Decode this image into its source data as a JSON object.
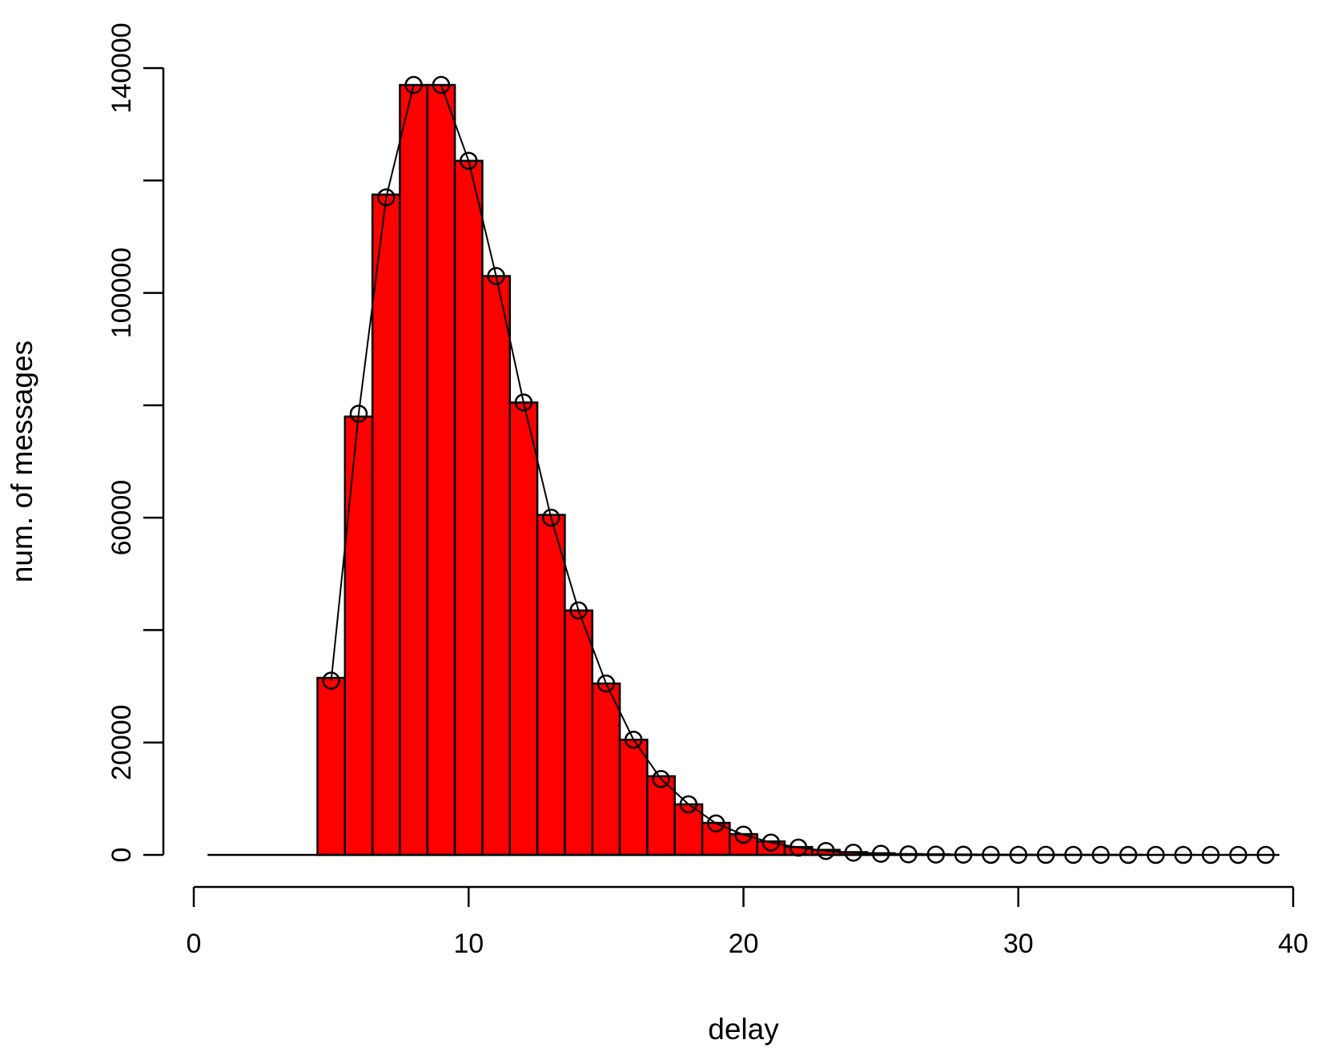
{
  "chart_data": {
    "type": "bar",
    "xlabel": "delay",
    "ylabel": "num. of messages",
    "xlim": [
      0,
      40
    ],
    "ylim": [
      0,
      140000
    ],
    "x_ticks": [
      0,
      10,
      20,
      30,
      40
    ],
    "y_ticks": [
      0,
      20000,
      60000,
      100000,
      140000
    ],
    "x_tick_labels": [
      "0",
      "10",
      "20",
      "30",
      "40"
    ],
    "y_tick_labels": [
      "0",
      "20000",
      "60000",
      "100000",
      "140000"
    ],
    "bar_color": "#ff0000",
    "point_marker": "open-circle",
    "bin_width": 1,
    "x": [
      1,
      2,
      3,
      4,
      5,
      6,
      7,
      8,
      9,
      10,
      11,
      12,
      13,
      14,
      15,
      16,
      17,
      18,
      19,
      20,
      21,
      22,
      23,
      24,
      25,
      26,
      27,
      28,
      29,
      30,
      31,
      32,
      33,
      34,
      35,
      36,
      37,
      38,
      39
    ],
    "bars": [
      0,
      0,
      0,
      0,
      31500,
      78000,
      117500,
      137000,
      137000,
      123500,
      103000,
      80500,
      60500,
      43500,
      30500,
      20500,
      14000,
      9000,
      5700,
      3700,
      2400,
      1400,
      900,
      500,
      300,
      150,
      100,
      60,
      40,
      20,
      10,
      10,
      5,
      5,
      0,
      0,
      0,
      0,
      0
    ],
    "points_x": [
      5,
      6,
      7,
      8,
      9,
      10,
      11,
      12,
      13,
      14,
      15,
      16,
      17,
      18,
      19,
      20,
      21,
      22,
      23,
      24,
      25,
      26,
      27,
      28,
      29,
      30,
      31,
      32,
      33,
      34,
      35,
      36,
      37,
      38,
      39
    ],
    "points_y": [
      31000,
      78500,
      117000,
      137000,
      137000,
      123500,
      103000,
      80500,
      60000,
      43500,
      30500,
      20500,
      13500,
      9000,
      5600,
      3600,
      2200,
      1300,
      700,
      400,
      200,
      100,
      60,
      40,
      20,
      10,
      10,
      5,
      5,
      0,
      0,
      0,
      0,
      0,
      0
    ]
  }
}
